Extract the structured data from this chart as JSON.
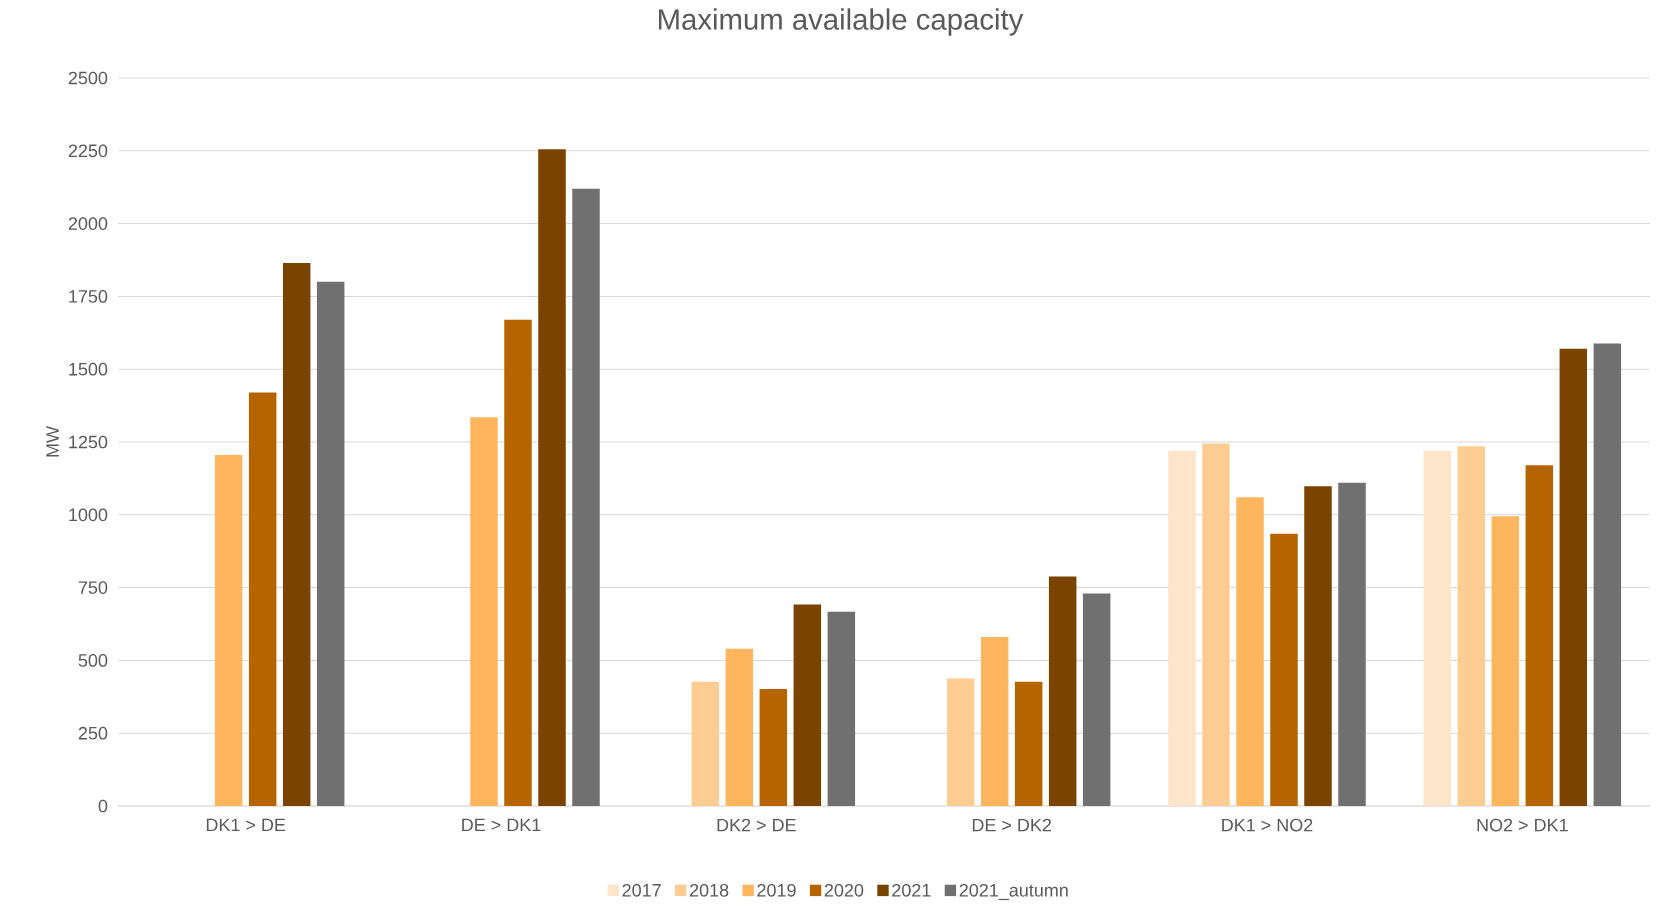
{
  "chart_data": {
    "type": "bar",
    "title": "Maximum available capacity",
    "ylabel": "MW",
    "categories": [
      "DK1 > DE",
      "DE > DK1",
      "DK2 > DE",
      "DE > DK2",
      "DK1 > NO2",
      "NO2 > DK1"
    ],
    "series": [
      {
        "name": "2017",
        "color": "#fde5c9",
        "values": [
          null,
          null,
          null,
          null,
          1220,
          1220
        ]
      },
      {
        "name": "2018",
        "color": "#fdcc92",
        "values": [
          null,
          null,
          427,
          438,
          1245,
          1235
        ]
      },
      {
        "name": "2019",
        "color": "#fdb55e",
        "values": [
          1205,
          1335,
          540,
          580,
          1060,
          995
        ]
      },
      {
        "name": "2020",
        "color": "#b56400",
        "values": [
          1420,
          1670,
          402,
          427,
          935,
          1170
        ]
      },
      {
        "name": "2021",
        "color": "#7a4300",
        "values": [
          1865,
          2255,
          692,
          788,
          1098,
          1570
        ]
      },
      {
        "name": "2021_autumn",
        "color": "#707070",
        "values": [
          1800,
          2120,
          667,
          730,
          1110,
          1588
        ]
      }
    ],
    "ylim": [
      0,
      2500
    ],
    "yticks": [
      0,
      250,
      500,
      750,
      1000,
      1250,
      1500,
      1750,
      2000,
      2250,
      2500
    ],
    "grid": "y",
    "legend": "bottom"
  }
}
